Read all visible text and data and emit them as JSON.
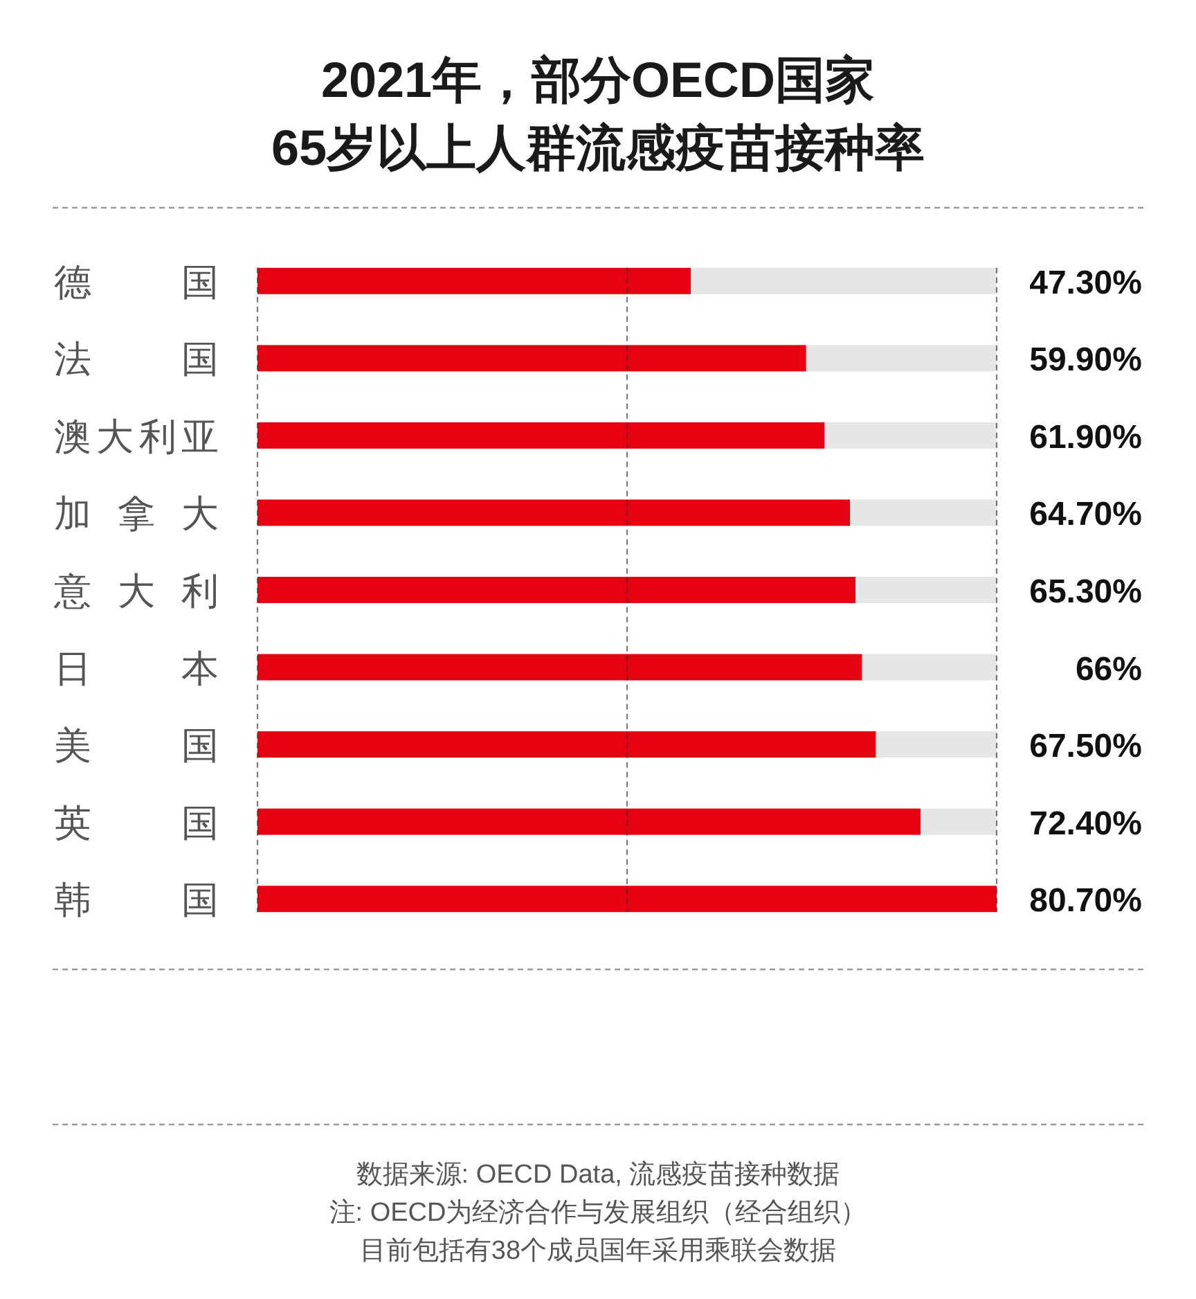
{
  "chart_data": {
    "type": "bar",
    "orientation": "horizontal",
    "stacked": true,
    "title": "2021年，部分OECD国家",
    "subtitle": "65岁以上人群流感疫苗接种率",
    "categories": [
      "德国",
      "法国",
      "澳大利亚",
      "加拿大",
      "意大利",
      "日本",
      "美国",
      "英国",
      "韩国"
    ],
    "series": [
      {
        "color": "#e60012",
        "values": [
          47.3,
          59.9,
          61.9,
          64.7,
          65.3,
          66,
          67.5,
          72.4,
          80.7
        ],
        "value_labels": [
          "47.30%",
          "59.90%",
          "61.90%",
          "64.70%",
          "65.30%",
          "66%",
          "67.50%",
          "72.40%",
          "80.70%"
        ]
      },
      {
        "color": "#e6e6e6",
        "values": [
          33.4,
          20.8,
          18.8,
          16.0,
          15.4,
          14.7,
          13.2,
          8.3,
          0
        ]
      }
    ],
    "xlim": [
      0,
      80.7
    ],
    "xticks": [
      {
        "value": 0,
        "label": null
      },
      {
        "value": 40.35,
        "label": null
      },
      {
        "value": 80.7,
        "label": null
      }
    ],
    "grid": "x",
    "tick_labels": "y",
    "annotations": [
      "数据来源: OECD Data, 流感疫苗接种数据",
      "注: OECD为经济合作与发展组织（经合组织）",
      "目前包括有38个成员国年采用乘联会数据"
    ]
  }
}
